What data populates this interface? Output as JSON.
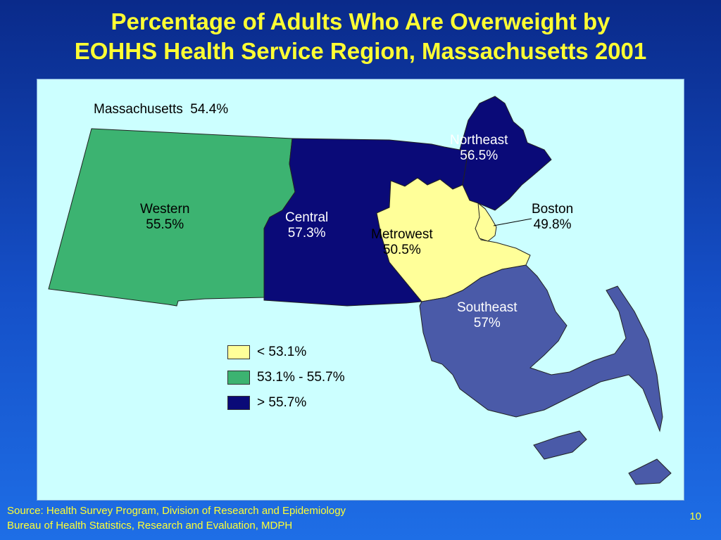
{
  "title": {
    "line1": "Percentage of Adults Who Are Overweight by",
    "line2": "EOHHS Health Service Region, Massachusetts 2001"
  },
  "state": {
    "label": "Massachusetts",
    "value": "54.4%"
  },
  "regions": [
    {
      "id": "western",
      "name": "Western",
      "value": "55.5%",
      "category": "53.1% - 55.7%"
    },
    {
      "id": "central",
      "name": "Central",
      "value": "57.3%",
      "category": "> 55.7%"
    },
    {
      "id": "northeast",
      "name": "Northeast",
      "value": "56.5%",
      "category": "> 55.7%"
    },
    {
      "id": "metrowest",
      "name": "Metrowest",
      "value": "50.5%",
      "category": "< 53.1%"
    },
    {
      "id": "boston",
      "name": "Boston",
      "value": "49.8%",
      "category": "< 53.1%"
    },
    {
      "id": "southeast",
      "name": "Southeast",
      "value": "57%",
      "category": "> 55.7%"
    }
  ],
  "legend": [
    {
      "label": "< 53.1%",
      "color": "#ffff99"
    },
    {
      "label": "53.1% - 55.7%",
      "color": "#3cb371"
    },
    {
      "label": "> 55.7%",
      "color": "#0a0a78"
    }
  ],
  "colors": {
    "title": "#ffff33",
    "map_background": "#ccffff",
    "southeast": "#4a5aa8"
  },
  "source": {
    "line1": "Source: Health Survey Program, Division of Research and Epidemiology",
    "line2": "Bureau of Health Statistics, Research and Evaluation, MDPH"
  },
  "page_number": "10"
}
